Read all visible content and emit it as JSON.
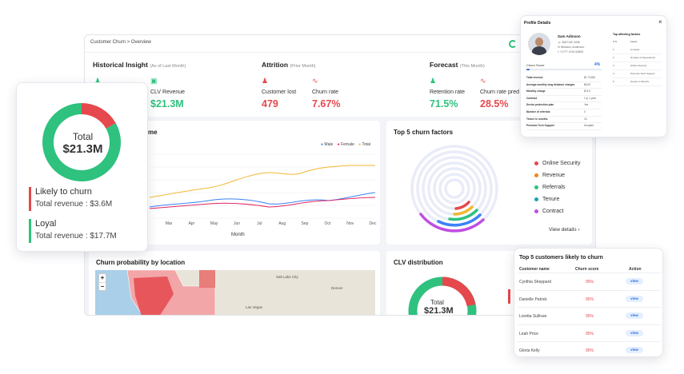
{
  "dashboard": {
    "breadcrumb": "Customer Churn > Overview",
    "historical": {
      "title": "Historical Insight",
      "subtitle": "(As of Last Month)",
      "clv_label": "CLV Revenue",
      "clv_value": "$21.3M"
    },
    "attrition": {
      "title": "Attrition",
      "subtitle": "(Prior Month)",
      "customer_lost_label": "Customer lost",
      "customer_lost_value": "479",
      "churn_rate_label": "Churn rate",
      "churn_rate_value": "7.67%"
    },
    "forecast": {
      "title": "Forecast",
      "subtitle": "(This Month)",
      "retention_label": "Retention rate",
      "retention_value": "71.5%",
      "churn_pred_label": "Churn rate pred",
      "churn_pred_value": "28.5%"
    },
    "trend": {
      "title_fragment": "me",
      "xlabel": "Month",
      "months": [
        "Mar",
        "Apr",
        "May",
        "Jun",
        "Jul",
        "Aug",
        "Sep",
        "Oct",
        "Nov",
        "Dec"
      ],
      "legend": [
        "Male",
        "Female",
        "Total"
      ]
    },
    "churn_factors": {
      "title": "Top 5 churn factors",
      "items": [
        "Online Security",
        "Revenue",
        "Referrals",
        "Tenure",
        "Contract"
      ],
      "details_link": "View details ›"
    },
    "location": {
      "title": "Churn probability by location",
      "zoom_in": "+",
      "zoom_out": "−",
      "cities": [
        "Salt Lake City",
        "Denver",
        "Las Vegas"
      ]
    },
    "clv_distribution": {
      "title": "CLV distribution",
      "center_label": "Total",
      "center_value": "$21.3M"
    }
  },
  "total_card": {
    "center_label": "Total",
    "center_value": "$21.3M",
    "likely_title": "Likely to churn",
    "likely_revenue": "Total revenue : $3.6M",
    "loyal_title": "Loyal",
    "loyal_revenue": "Total revenue : $17.7M",
    "chart_data": {
      "type": "pie",
      "categories": [
        "Likely to churn",
        "Loyal"
      ],
      "values": [
        3.6,
        17.7
      ]
    }
  },
  "profile": {
    "title": "Profile Details",
    "close": "×",
    "name": "Sam Adinson",
    "contact": [
      "4567132 4436",
      "Winston, Anderson",
      "+1777 4744 52800"
    ],
    "churn_score_label": "Churn Score",
    "churn_score_value": "4%",
    "churn_score_fraction": 0.04,
    "details": [
      {
        "label": "Total revenue",
        "value": "$1 73,832"
      },
      {
        "label": "Average monthly long distance charges",
        "value": "$6.09"
      },
      {
        "label": "Monthly charge",
        "value": "$74.9"
      },
      {
        "label": "Contract",
        "value": "1 yr 1 year"
      },
      {
        "label": "Device protection plan",
        "value": "Yes"
      },
      {
        "label": "Number of referrals",
        "value": "0"
      },
      {
        "label": "Tenure in months",
        "value": "15"
      },
      {
        "label": "Premium Tech Support",
        "value": "Unopted"
      }
    ],
    "factors_title": "Top affecting factors",
    "factors_headers": [
      "S.N",
      "Factor"
    ],
    "factors": [
      {
        "sn": "1",
        "factor": "Contract"
      },
      {
        "sn": "2",
        "factor": "Number of Dependents"
      },
      {
        "sn": "3",
        "factor": "Online Security"
      },
      {
        "sn": "4",
        "factor": "Premium Tech Support"
      },
      {
        "sn": "5",
        "factor": "Tenure in Months"
      }
    ]
  },
  "top_customers": {
    "title": "Top 5 customers likely to churn",
    "headers": [
      "Customer name",
      "Churn score",
      "Action"
    ],
    "rows": [
      {
        "name": "Cynthia Sheppard",
        "score": "95%",
        "action": "view"
      },
      {
        "name": "Danielle Patrick",
        "score": "95%",
        "action": "view"
      },
      {
        "name": "Loretta Sullivan",
        "score": "95%",
        "action": "view"
      },
      {
        "name": "Leah Price",
        "score": "95%",
        "action": "view"
      },
      {
        "name": "Gloria Kelly",
        "score": "95%",
        "action": "view"
      }
    ]
  },
  "colors": {
    "green": "#2ec27e",
    "red": "#e5484d",
    "blue": "#3b82f6",
    "pink": "#e0245e",
    "yellow": "#f2b731",
    "purple": "#c04ee0",
    "teal": "#17a2b8",
    "orange": "#f0861a"
  },
  "icons": [
    "users-icon",
    "database-icon",
    "user-minus-icon",
    "trend-icon",
    "user-check-icon",
    "chart-icon",
    "close-icon",
    "refresh-icon",
    "phone-icon",
    "mail-icon",
    "location-icon"
  ]
}
